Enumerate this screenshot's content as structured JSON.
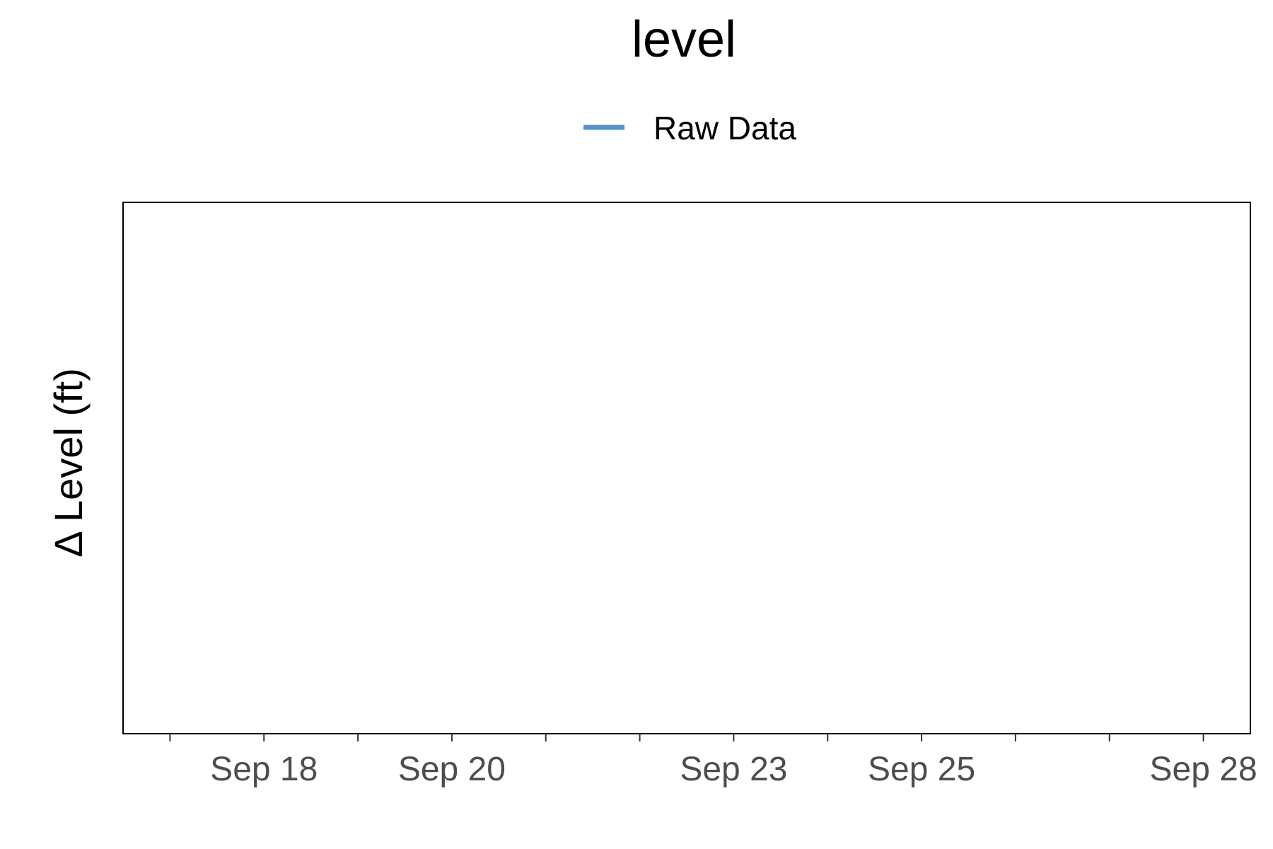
{
  "chart_data": {
    "type": "line",
    "title": "level",
    "xlabel": "",
    "ylabel": "Δ Level (ft)",
    "x_axis_type": "date",
    "x_ticks": [
      {
        "date": "Sep 17",
        "label": ""
      },
      {
        "date": "Sep 18",
        "label": "Sep 18"
      },
      {
        "date": "Sep 19",
        "label": ""
      },
      {
        "date": "Sep 20",
        "label": "Sep 20"
      },
      {
        "date": "Sep 21",
        "label": ""
      },
      {
        "date": "Sep 22",
        "label": ""
      },
      {
        "date": "Sep 23",
        "label": "Sep 23"
      },
      {
        "date": "Sep 24",
        "label": ""
      },
      {
        "date": "Sep 25",
        "label": "Sep 25"
      },
      {
        "date": "Sep 26",
        "label": ""
      },
      {
        "date": "Sep 27",
        "label": ""
      },
      {
        "date": "Sep 28",
        "label": "Sep 28"
      }
    ],
    "xlim": [
      "Sep 17.5",
      "Sep 28.5"
    ],
    "y_ticks": [],
    "series": [
      {
        "name": "Raw Data",
        "color": "#4d94d0",
        "values": []
      }
    ],
    "legend_position": "top",
    "grid": false,
    "border": true
  }
}
